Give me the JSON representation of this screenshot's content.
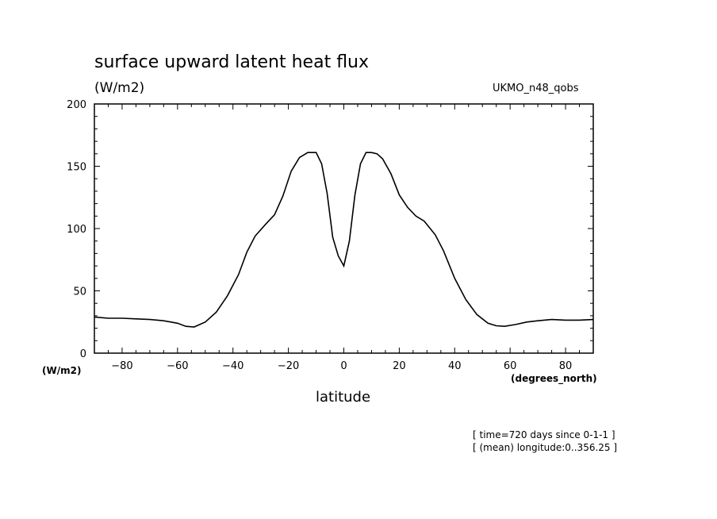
{
  "chart_data": {
    "type": "line",
    "title": "surface upward latent heat flux",
    "units_label": "(W/m2)",
    "model_label": "UKMO_n48_qobs",
    "ylabel": "(W/m2)",
    "xlabel": "latitude",
    "xunit": "(degrees_north)",
    "xlim": [
      -90,
      90
    ],
    "ylim": [
      0,
      200
    ],
    "xticks": [
      -80,
      -60,
      -40,
      -20,
      0,
      20,
      40,
      60,
      80
    ],
    "yticks": [
      0,
      50,
      100,
      150,
      200
    ],
    "grid": false,
    "notes": [
      "[ time=720 days since 0-1-1 ]",
      "[ (mean) longitude:0..356.25 ]"
    ],
    "series": [
      {
        "x": [
          -90,
          -85,
          -80,
          -75,
          -70,
          -65,
          -60,
          -57,
          -54,
          -50,
          -46,
          -42,
          -38,
          -35,
          -32,
          -28,
          -25,
          -22,
          -19,
          -16,
          -13,
          -10,
          -8,
          -6,
          -4,
          -2,
          0,
          2,
          4,
          6,
          8,
          10,
          12,
          14,
          17,
          20,
          23,
          26,
          29,
          33,
          36,
          40,
          44,
          48,
          52,
          55,
          58,
          62,
          66,
          70,
          75,
          80,
          85,
          90
        ],
        "y": [
          29,
          28,
          28,
          27.5,
          27,
          26,
          24,
          21.5,
          21,
          25,
          33,
          46,
          63,
          81,
          94,
          104,
          111,
          126,
          146,
          157,
          161,
          161,
          152,
          128,
          93,
          78,
          70,
          90,
          127,
          152,
          161,
          161,
          160,
          156,
          144,
          127,
          117,
          110,
          106,
          95,
          82,
          60,
          43,
          31,
          24,
          22,
          21.5,
          23,
          25,
          26,
          27,
          26.5,
          26.5,
          27
        ]
      }
    ]
  }
}
